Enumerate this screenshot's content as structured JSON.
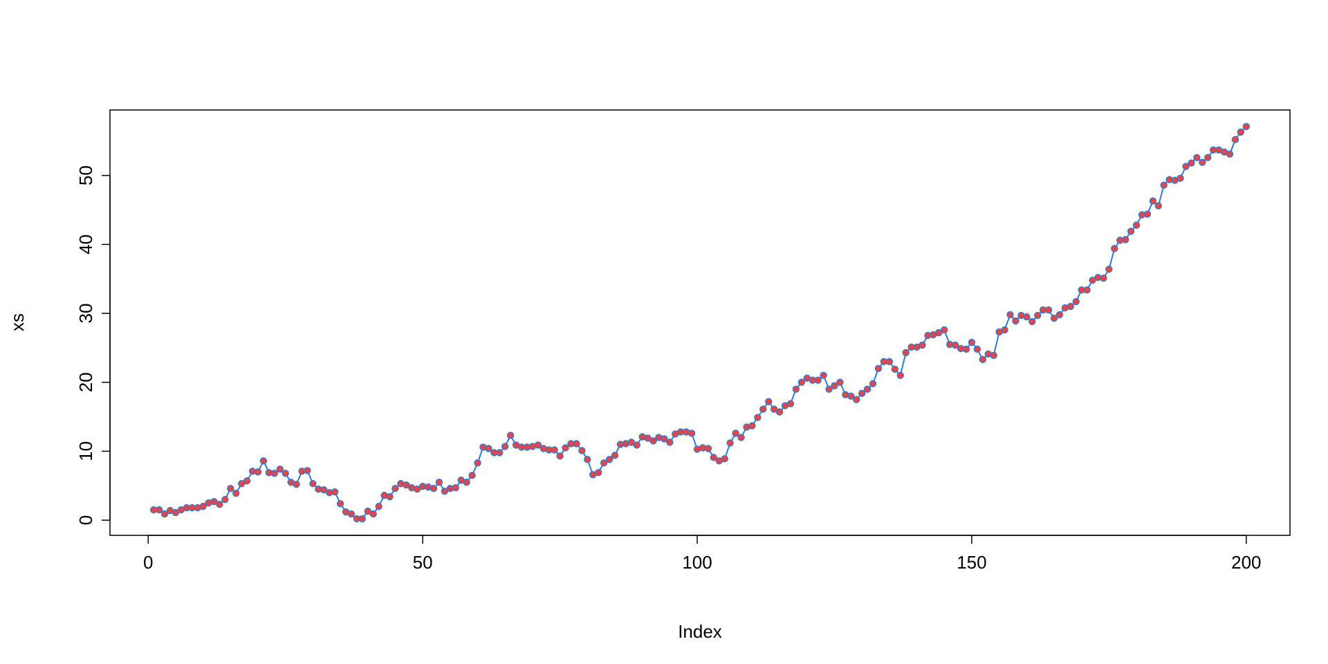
{
  "chart_data": {
    "type": "line",
    "xlabel": "Index",
    "ylabel": "xs",
    "x": [
      1,
      2,
      3,
      4,
      5,
      6,
      7,
      8,
      9,
      10,
      11,
      12,
      13,
      14,
      15,
      16,
      17,
      18,
      19,
      20,
      21,
      22,
      23,
      24,
      25,
      26,
      27,
      28,
      29,
      30,
      31,
      32,
      33,
      34,
      35,
      36,
      37,
      38,
      39,
      40,
      41,
      42,
      43,
      44,
      45,
      46,
      47,
      48,
      49,
      50,
      51,
      52,
      53,
      54,
      55,
      56,
      57,
      58,
      59,
      60,
      61,
      62,
      63,
      64,
      65,
      66,
      67,
      68,
      69,
      70,
      71,
      72,
      73,
      74,
      75,
      76,
      77,
      78,
      79,
      80,
      81,
      82,
      83,
      84,
      85,
      86,
      87,
      88,
      89,
      90,
      91,
      92,
      93,
      94,
      95,
      96,
      97,
      98,
      99,
      100,
      101,
      102,
      103,
      104,
      105,
      106,
      107,
      108,
      109,
      110,
      111,
      112,
      113,
      114,
      115,
      116,
      117,
      118,
      119,
      120,
      121,
      122,
      123,
      124,
      125,
      126,
      127,
      128,
      129,
      130,
      131,
      132,
      133,
      134,
      135,
      136,
      137,
      138,
      139,
      140,
      141,
      142,
      143,
      144,
      145,
      146,
      147,
      148,
      149,
      150,
      151,
      152,
      153,
      154,
      155,
      156,
      157,
      158,
      159,
      160,
      161,
      162,
      163,
      164,
      165,
      166,
      167,
      168,
      169,
      170,
      171,
      172,
      173,
      174,
      175,
      176,
      177,
      178,
      179,
      180,
      181,
      182,
      183,
      184,
      185,
      186,
      187,
      188,
      189,
      190,
      191,
      192,
      193,
      194,
      195,
      196,
      197,
      198,
      199,
      200
    ],
    "series": [
      {
        "name": "xs",
        "color": "#2b7bd6",
        "point_color": "#e0474c",
        "values": [
          1.5,
          1.5,
          0.9,
          1.4,
          1.1,
          1.5,
          1.8,
          1.8,
          1.8,
          2.0,
          2.5,
          2.7,
          2.3,
          3.0,
          4.6,
          3.9,
          5.3,
          5.7,
          7.1,
          7.0,
          8.6,
          6.9,
          6.8,
          7.4,
          6.8,
          5.5,
          5.2,
          7.1,
          7.2,
          5.3,
          4.5,
          4.4,
          4.0,
          4.1,
          2.4,
          1.2,
          0.9,
          0.2,
          0.2,
          1.3,
          0.9,
          2.0,
          3.6,
          3.4,
          4.6,
          5.3,
          5.1,
          4.7,
          4.5,
          4.9,
          4.8,
          4.6,
          5.5,
          4.2,
          4.6,
          4.7,
          5.8,
          5.5,
          6.5,
          8.3,
          10.6,
          10.4,
          9.8,
          9.8,
          10.7,
          12.3,
          10.9,
          10.6,
          10.6,
          10.7,
          10.9,
          10.4,
          10.2,
          10.2,
          9.3,
          10.5,
          11.1,
          11.1,
          10.1,
          8.8,
          6.6,
          6.9,
          8.3,
          8.8,
          9.4,
          11.0,
          11.1,
          11.3,
          10.9,
          12.1,
          11.9,
          11.5,
          12.0,
          11.8,
          11.3,
          12.5,
          12.8,
          12.8,
          12.6,
          10.3,
          10.5,
          10.4,
          9.1,
          8.6,
          8.9,
          11.2,
          12.6,
          12.0,
          13.5,
          13.7,
          14.9,
          16.1,
          17.2,
          16.1,
          15.7,
          16.6,
          16.9,
          19.0,
          20.0,
          20.6,
          20.3,
          20.3,
          21.0,
          19.0,
          19.5,
          20.0,
          18.2,
          18.0,
          17.5,
          18.4,
          19.0,
          19.8,
          22.0,
          23.0,
          23.0,
          21.9,
          21.0,
          24.3,
          25.1,
          25.1,
          25.4,
          26.8,
          26.9,
          27.2,
          27.6,
          25.5,
          25.4,
          24.9,
          24.8,
          25.8,
          24.8,
          23.3,
          24.1,
          23.9,
          27.3,
          27.6,
          29.8,
          28.9,
          29.7,
          29.5,
          28.8,
          29.7,
          30.5,
          30.5,
          29.3,
          29.8,
          30.8,
          31.0,
          31.7,
          33.4,
          33.4,
          34.8,
          35.2,
          35.1,
          36.4,
          39.4,
          40.6,
          40.7,
          41.9,
          42.8,
          44.3,
          44.4,
          46.3,
          45.6,
          48.6,
          49.4,
          49.3,
          49.6,
          51.3,
          51.8,
          52.6,
          51.9,
          52.6,
          53.7,
          53.7,
          53.4,
          53.1,
          55.2,
          56.3,
          57.1
        ]
      }
    ],
    "xlim": [
      -6.96,
      207.96
    ],
    "xticks": [
      0,
      50,
      100,
      150,
      200
    ],
    "ylim": [
      -2.2,
      59.5
    ],
    "yticks": [
      0,
      10,
      20,
      30,
      40,
      50
    ]
  }
}
